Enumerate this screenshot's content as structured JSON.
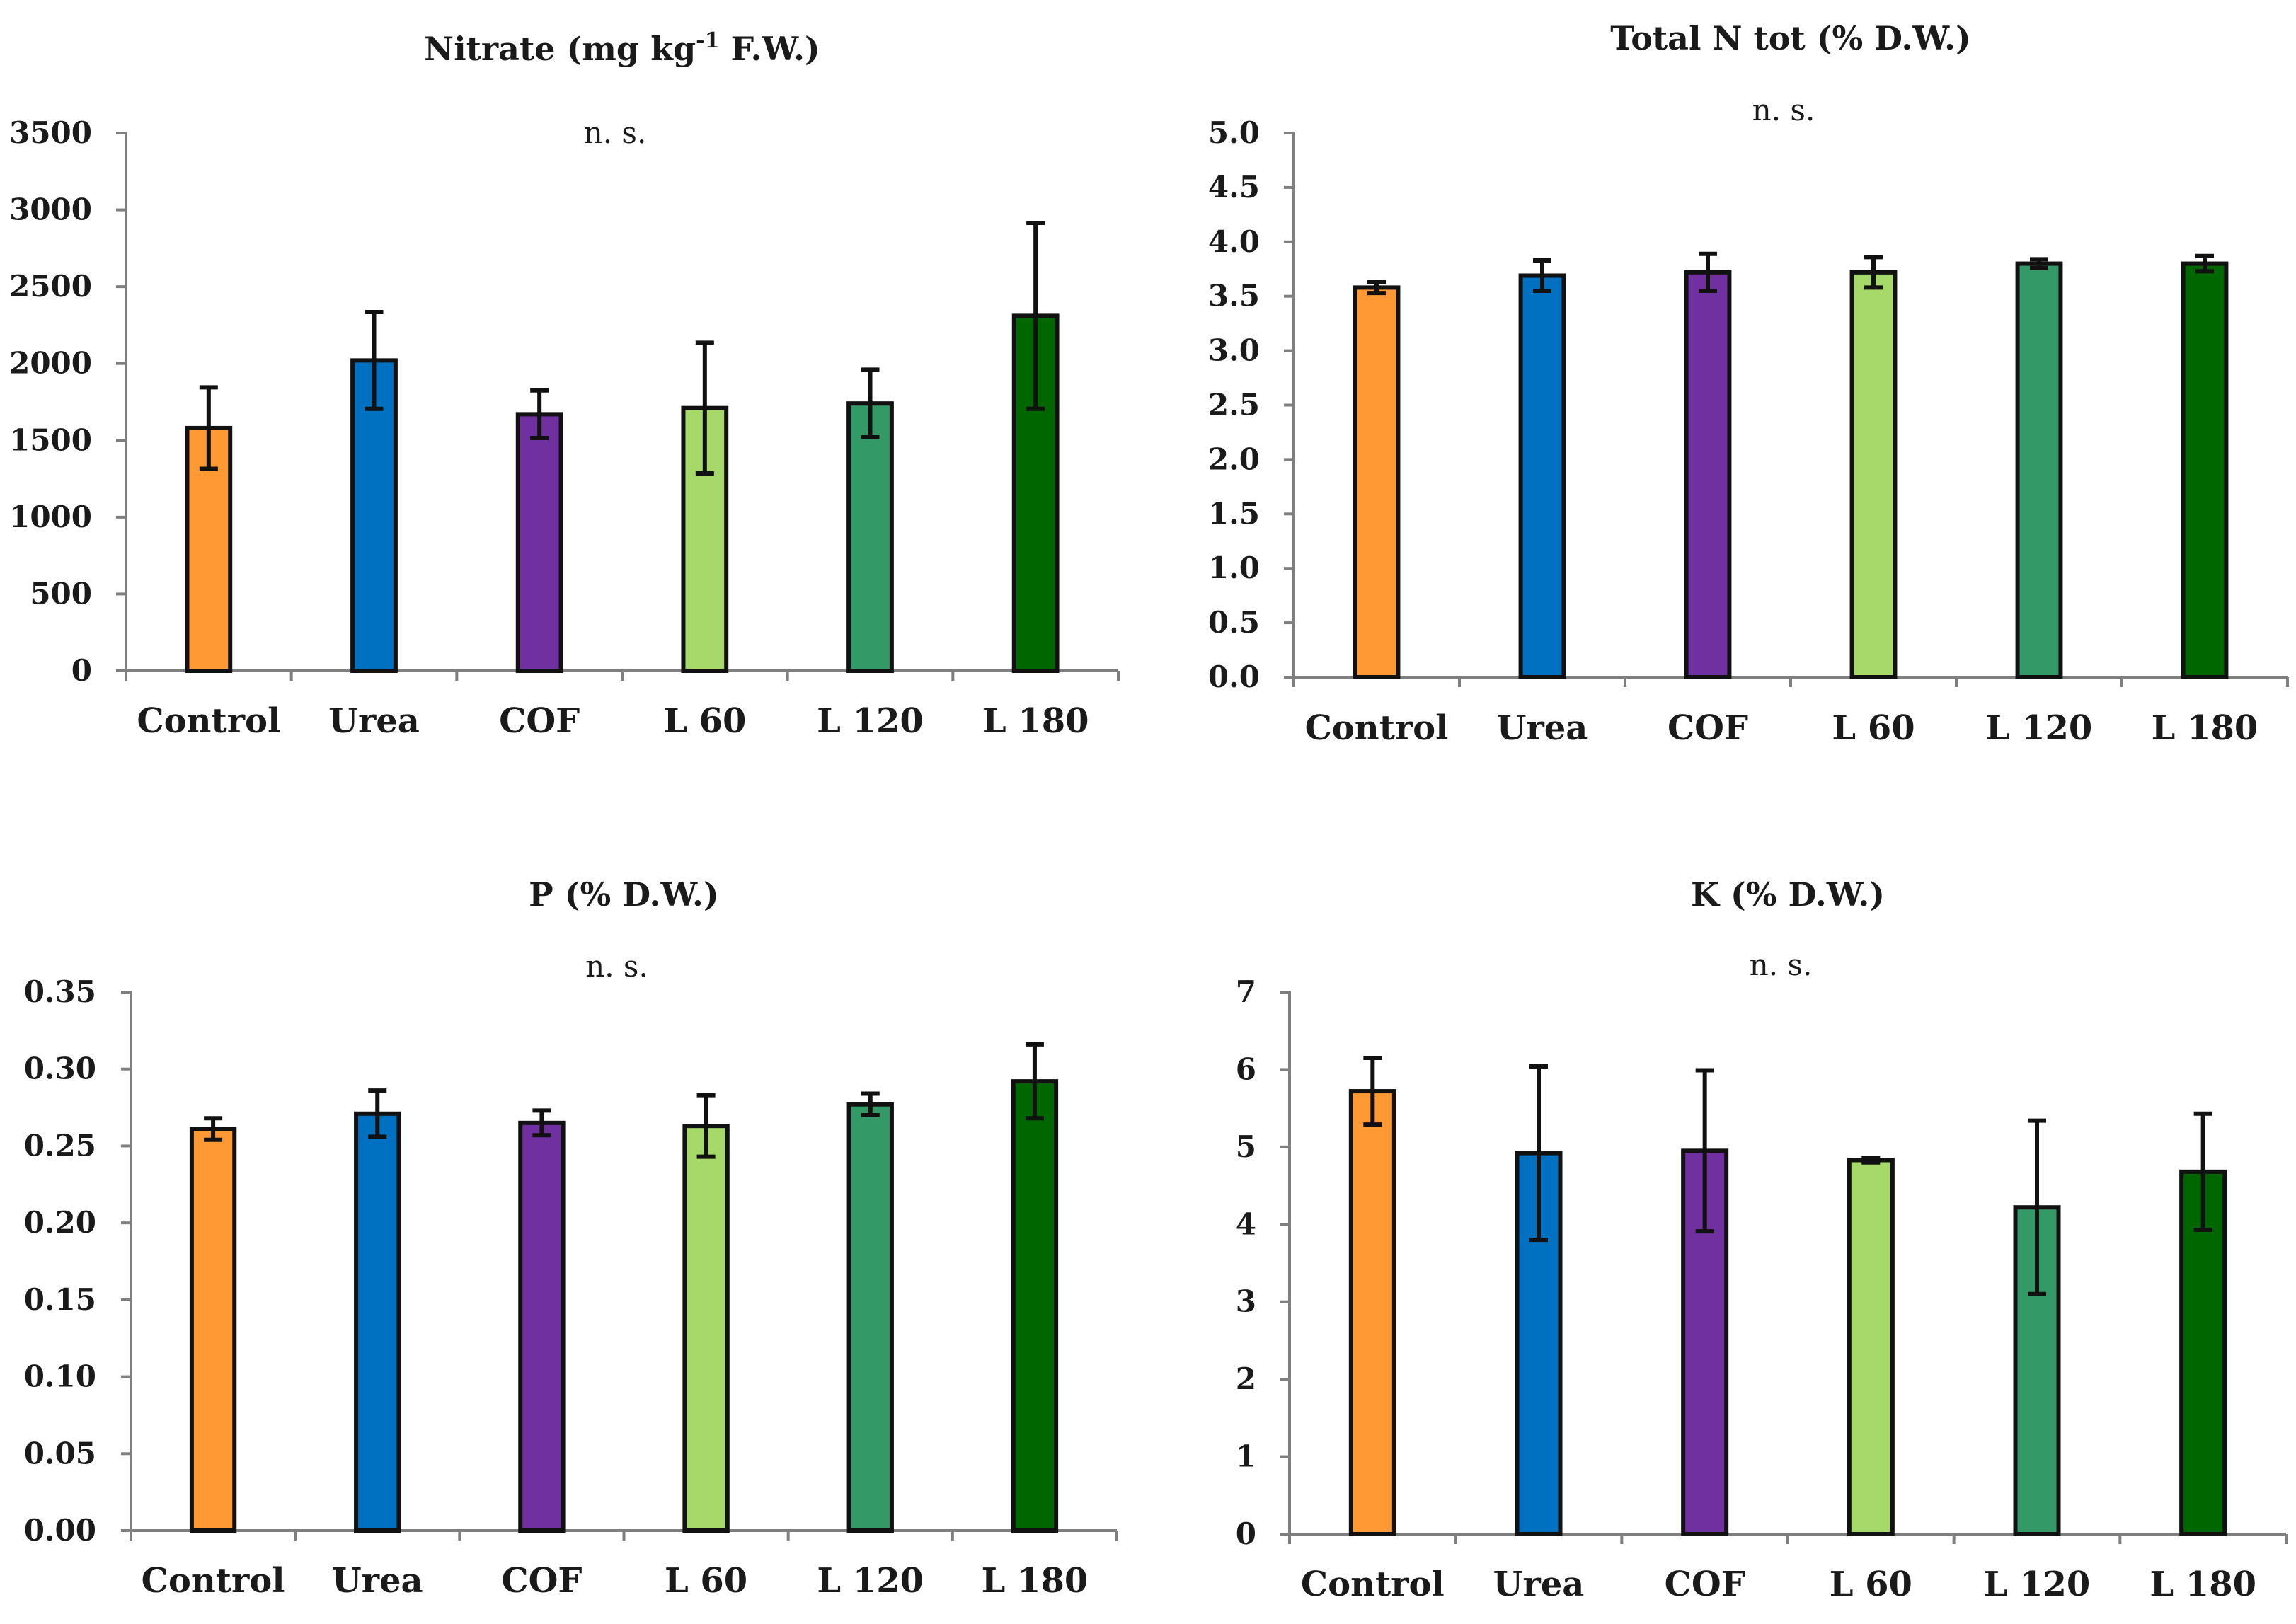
{
  "chart_data": [
    {
      "type": "bar",
      "title": "Nitrate (mg kg",
      "title_sup": "-1",
      "title_tail": " F.W.)",
      "annotation": "n. s.",
      "categories": [
        "Control",
        "Urea",
        "COF",
        "L 60",
        "L 120",
        "L 180"
      ],
      "values": [
        1580,
        2020,
        1670,
        1710,
        1740,
        2310
      ],
      "errors": [
        265,
        315,
        155,
        425,
        220,
        605
      ],
      "colors": [
        "#ff9933",
        "#0070c0",
        "#7030a0",
        "#a6d96a",
        "#339966",
        "#006600"
      ],
      "ylim": [
        0,
        3500
      ],
      "yticks": [
        "0",
        "500",
        "1000",
        "1500",
        "2000",
        "2500",
        "3000",
        "3500"
      ]
    },
    {
      "type": "bar",
      "title": "Total N tot (% D.W.)",
      "annotation": "n. s.",
      "categories": [
        "Control",
        "Urea",
        "COF",
        "L 60",
        "L 120",
        "L 180"
      ],
      "values": [
        3.58,
        3.69,
        3.72,
        3.72,
        3.8,
        3.8
      ],
      "errors": [
        0.05,
        0.14,
        0.17,
        0.14,
        0.04,
        0.07
      ],
      "colors": [
        "#ff9933",
        "#0070c0",
        "#7030a0",
        "#a6d96a",
        "#339966",
        "#006600"
      ],
      "ylim": [
        0,
        5
      ],
      "yticks": [
        "0.0",
        "0.5",
        "1.0",
        "1.5",
        "2.0",
        "2.5",
        "3.0",
        "3.5",
        "4.0",
        "4.5",
        "5.0"
      ]
    },
    {
      "type": "bar",
      "title": "P (% D.W.)",
      "annotation": "n. s.",
      "categories": [
        "Control",
        "Urea",
        "COF",
        "L 60",
        "L 120",
        "L 180"
      ],
      "values": [
        0.261,
        0.271,
        0.265,
        0.263,
        0.277,
        0.292
      ],
      "errors": [
        0.007,
        0.015,
        0.008,
        0.02,
        0.007,
        0.024
      ],
      "colors": [
        "#ff9933",
        "#0070c0",
        "#7030a0",
        "#a6d96a",
        "#339966",
        "#006600"
      ],
      "ylim": [
        0,
        0.35
      ],
      "yticks": [
        "0.00",
        "0.05",
        "0.10",
        "0.15",
        "0.20",
        "0.25",
        "0.30",
        "0.35"
      ]
    },
    {
      "type": "bar",
      "title": "K (% D.W.)",
      "annotation": "n. s.",
      "categories": [
        "Control",
        "Urea",
        "COF",
        "L 60",
        "L 120",
        "L 180"
      ],
      "values": [
        5.72,
        4.92,
        4.95,
        4.83,
        4.22,
        4.68
      ],
      "errors": [
        0.43,
        1.12,
        1.04,
        0.03,
        1.12,
        0.75
      ],
      "colors": [
        "#ff9933",
        "#0070c0",
        "#7030a0",
        "#a6d96a",
        "#339966",
        "#006600"
      ],
      "ylim": [
        0,
        7
      ],
      "yticks": [
        "0",
        "1",
        "2",
        "3",
        "4",
        "5",
        "6",
        "7"
      ]
    }
  ]
}
